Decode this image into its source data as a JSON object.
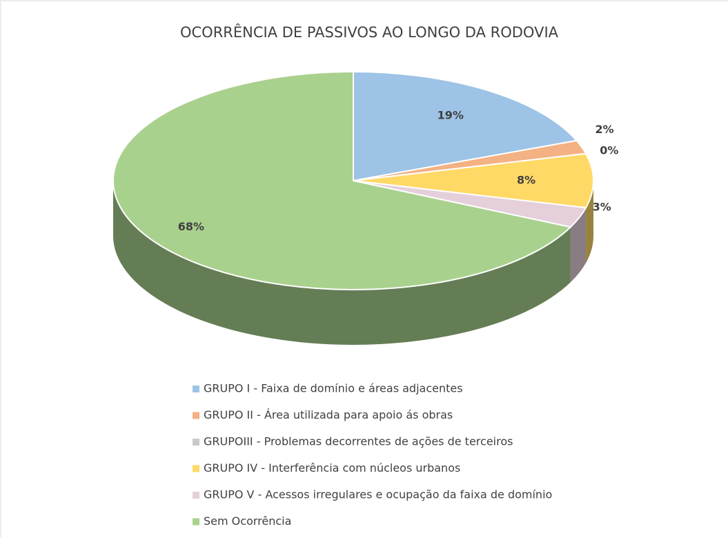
{
  "chart_data": {
    "type": "pie3d",
    "title": "OCORRÊNCIA DE PASSIVOS AO LONGO DA RODOVIA",
    "categories": [
      "GRUPO I - Faixa de domínio e áreas adjacentes",
      "GRUPO II - Área utilizada para apoio ás obras",
      "GRUPOIII - Problemas decorrentes de ações de terceiros",
      "GRUPO IV - Interferência com núcleos urbanos",
      "GRUPO V - Acessos irregulares e ocupação da faixa de domínio",
      "Sem Ocorrência"
    ],
    "values": [
      19,
      2,
      0,
      8,
      3,
      68
    ],
    "value_labels": [
      "19%",
      "2%",
      "0%",
      "8%",
      "3%",
      "68%"
    ],
    "colors": [
      "#9dc3e6",
      "#f4b183",
      "#c9c9c9",
      "#ffd966",
      "#e4cfdb",
      "#a9d18e"
    ],
    "legend": "bottom"
  }
}
